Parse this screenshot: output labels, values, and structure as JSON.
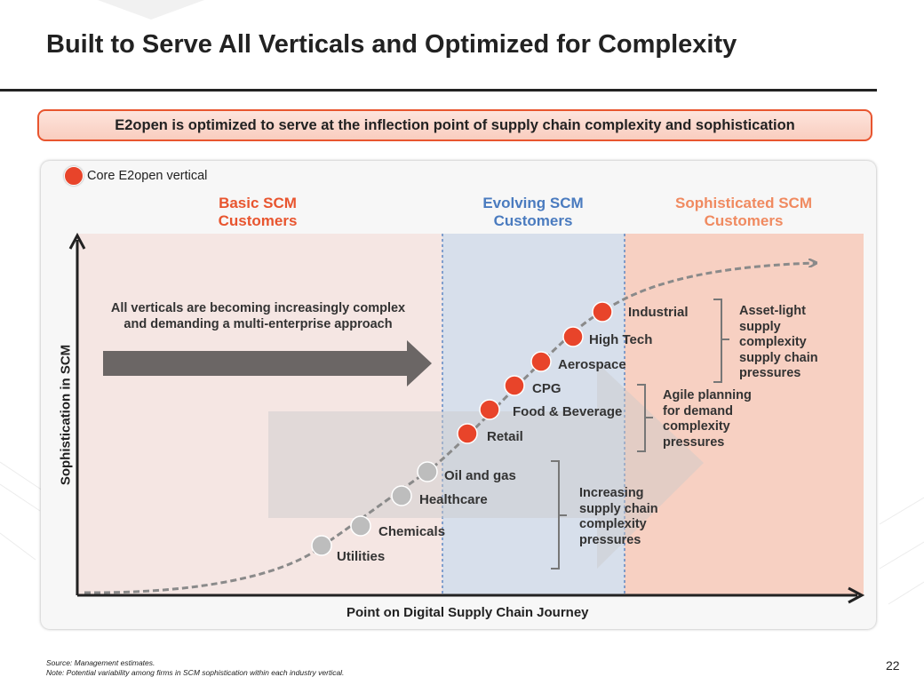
{
  "title": "Built to Serve All Verticals and Optimized for Complexity",
  "banner": "E2open is optimized to serve at the inflection point of supply chain complexity and sophistication",
  "legend": {
    "label": "Core E2open vertical",
    "color": "#e8442a"
  },
  "segments": {
    "basic": {
      "line1": "Basic SCM",
      "line2": "Customers",
      "color": "#e8552f"
    },
    "evolving": {
      "line1": "Evolving SCM",
      "line2": "Customers",
      "color": "#4a7bbf"
    },
    "sophisticated": {
      "line1": "Sophisticated SCM",
      "line2": "Customers",
      "color": "#f08a60"
    }
  },
  "axes": {
    "y_label": "Sophistication in SCM",
    "x_label": "Point on Digital Supply Chain Journey"
  },
  "trend_text": "All verticals are becoming increasingly complex and demanding a multi-enterprise approach",
  "verticals": [
    {
      "name": "Utilities",
      "core": false
    },
    {
      "name": "Chemicals",
      "core": false
    },
    {
      "name": "Healthcare",
      "core": false
    },
    {
      "name": "Oil and gas",
      "core": false
    },
    {
      "name": "Retail",
      "core": true
    },
    {
      "name": "Food & Beverage",
      "core": true
    },
    {
      "name": "CPG",
      "core": true
    },
    {
      "name": "Aerospace",
      "core": true
    },
    {
      "name": "High Tech",
      "core": true
    },
    {
      "name": "Industrial",
      "core": true
    }
  ],
  "brackets": {
    "increasing": "Increasing supply chain complexity pressures",
    "agile": "Agile planning for demand complexity pressures",
    "asset_light": "Asset-light supply complexity supply chain pressures"
  },
  "colors": {
    "core_dot": "#e8442a",
    "other_dot": "#bdbdbd",
    "curve": "#8a8a8a",
    "arrow": "#6b6665"
  },
  "footnotes": {
    "source": "Source: Management estimates.",
    "note": "Note: Potential variability among firms in SCM sophistication within each industry vertical."
  },
  "page_number": "22"
}
